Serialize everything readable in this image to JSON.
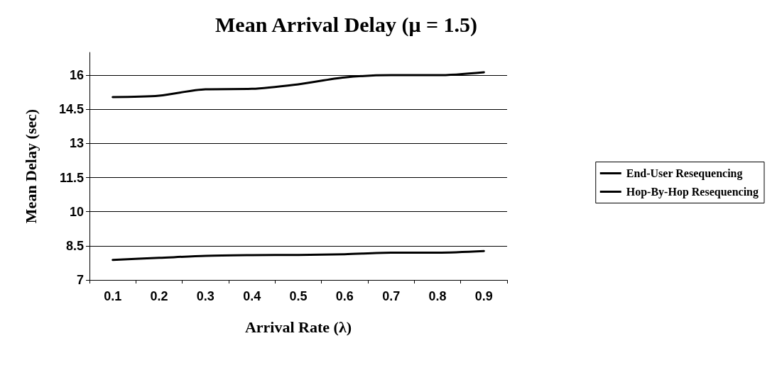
{
  "chart_data": {
    "type": "line",
    "title": "Mean Arrival Delay (μ = 1.5)",
    "xlabel": "Arrival Rate (λ)",
    "ylabel": "Mean Delay (sec)",
    "categories": [
      "0.1",
      "0.2",
      "0.3",
      "0.4",
      "0.5",
      "0.6",
      "0.7",
      "0.8",
      "0.9"
    ],
    "series": [
      {
        "name": "End-User Resequencing",
        "color": "#000000",
        "values": [
          15.04,
          15.1,
          15.38,
          15.4,
          15.6,
          15.9,
          16.0,
          16.0,
          16.13
        ]
      },
      {
        "name": "Hop-By-Hop Resequencing",
        "color": "#000000",
        "values": [
          7.88,
          7.97,
          8.06,
          8.09,
          8.1,
          8.13,
          8.2,
          8.2,
          8.27
        ]
      }
    ],
    "ylim": [
      7,
      17
    ],
    "yticks": [
      7,
      8.5,
      10,
      11.5,
      13,
      14.5,
      16
    ],
    "grid": "y",
    "legend": "right",
    "marker": "none",
    "line_style": "solid"
  }
}
